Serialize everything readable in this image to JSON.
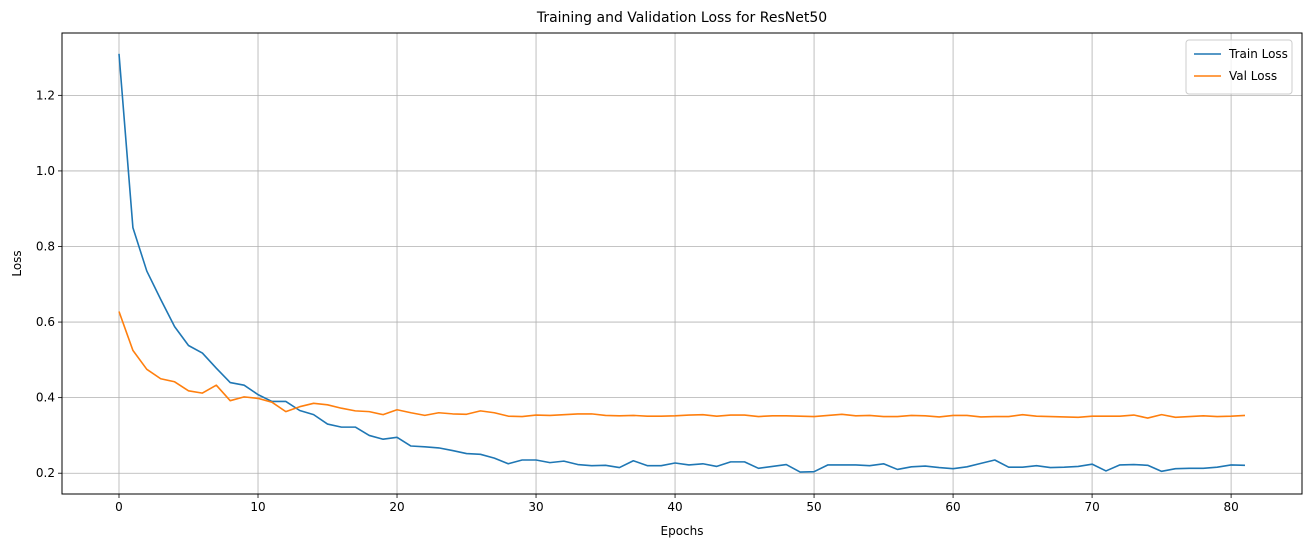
{
  "chart_data": {
    "type": "line",
    "title": "Training and Validation Loss for ResNet50",
    "xlabel": "Epochs",
    "ylabel": "Loss",
    "xlim": [
      -4.1,
      85.1
    ],
    "ylim": [
      0.145,
      1.365
    ],
    "xticks": [
      0,
      10,
      20,
      30,
      40,
      50,
      60,
      70,
      80
    ],
    "yticks": [
      0.2,
      0.4,
      0.6,
      0.8,
      1.0,
      1.2
    ],
    "ytick_labels": [
      "0.2",
      "0.4",
      "0.6",
      "0.8",
      "1.0",
      "1.2"
    ],
    "grid": true,
    "legend_position": "top-right",
    "series": [
      {
        "name": "Train Loss",
        "color": "#1f77b4",
        "values": [
          1.31,
          0.85,
          0.735,
          0.66,
          0.588,
          0.538,
          0.518,
          0.478,
          0.44,
          0.433,
          0.408,
          0.39,
          0.39,
          0.366,
          0.355,
          0.33,
          0.322,
          0.322,
          0.3,
          0.29,
          0.295,
          0.272,
          0.27,
          0.267,
          0.26,
          0.252,
          0.25,
          0.24,
          0.225,
          0.235,
          0.235,
          0.228,
          0.232,
          0.223,
          0.22,
          0.221,
          0.215,
          0.233,
          0.22,
          0.22,
          0.227,
          0.222,
          0.225,
          0.218,
          0.23,
          0.23,
          0.213,
          0.218,
          0.223,
          0.203,
          0.204,
          0.222,
          0.222,
          0.222,
          0.22,
          0.225,
          0.21,
          0.217,
          0.219,
          0.215,
          0.212,
          0.217,
          0.226,
          0.235,
          0.216,
          0.216,
          0.22,
          0.215,
          0.216,
          0.218,
          0.224,
          0.206,
          0.222,
          0.223,
          0.221,
          0.205,
          0.212,
          0.213,
          0.213,
          0.216,
          0.222,
          0.221
        ]
      },
      {
        "name": "Val Loss",
        "color": "#ff7f0e",
        "values": [
          0.628,
          0.525,
          0.475,
          0.45,
          0.442,
          0.418,
          0.412,
          0.433,
          0.392,
          0.402,
          0.398,
          0.388,
          0.363,
          0.376,
          0.385,
          0.381,
          0.372,
          0.365,
          0.363,
          0.355,
          0.368,
          0.36,
          0.353,
          0.36,
          0.357,
          0.356,
          0.365,
          0.36,
          0.351,
          0.35,
          0.354,
          0.353,
          0.355,
          0.357,
          0.357,
          0.353,
          0.352,
          0.353,
          0.351,
          0.351,
          0.352,
          0.354,
          0.355,
          0.351,
          0.354,
          0.354,
          0.35,
          0.352,
          0.352,
          0.351,
          0.35,
          0.353,
          0.356,
          0.352,
          0.353,
          0.35,
          0.35,
          0.353,
          0.352,
          0.349,
          0.353,
          0.353,
          0.349,
          0.35,
          0.35,
          0.355,
          0.351,
          0.35,
          0.349,
          0.348,
          0.351,
          0.351,
          0.351,
          0.354,
          0.346,
          0.355,
          0.348,
          0.35,
          0.352,
          0.35,
          0.351,
          0.353
        ]
      }
    ]
  }
}
